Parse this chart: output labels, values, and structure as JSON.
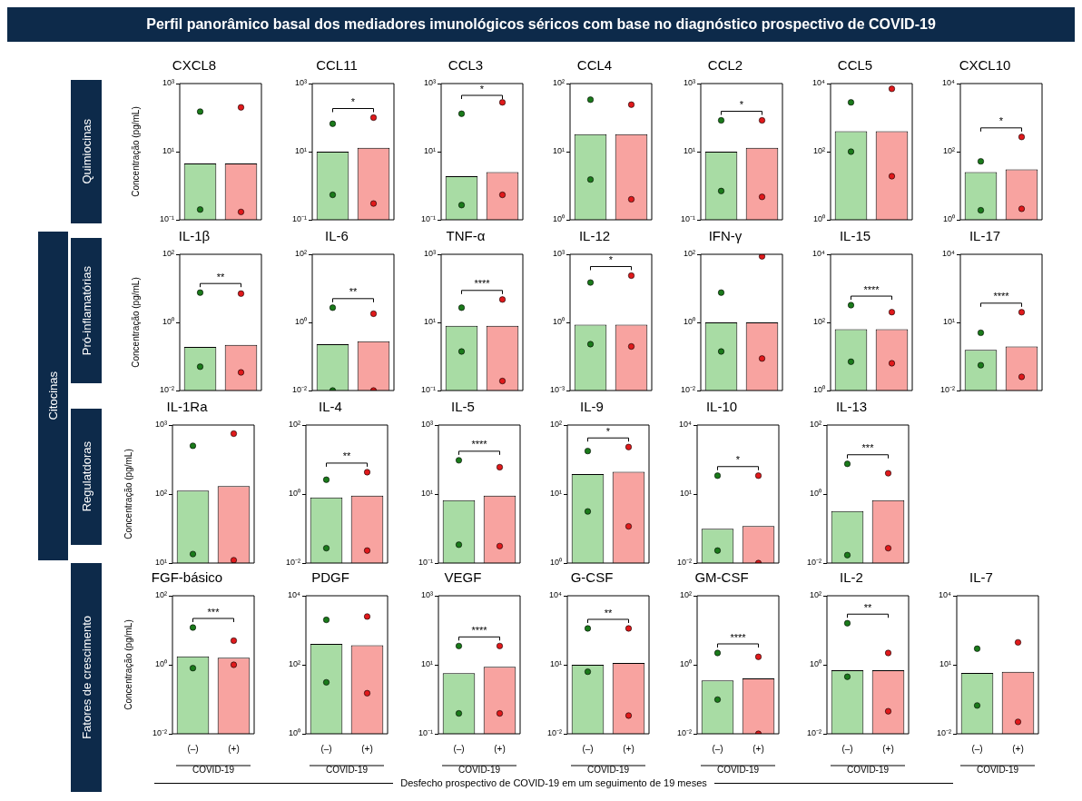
{
  "chart_data": [
    {
      "type": "other",
      "title": "Perfil panorâmico basal dos mediadores imunológicos séricos com base no diagnóstico prospectivo de COVID-19",
      "annotations": [
        "Citocinas",
        "Quimiocinas",
        "Pró-inflamatórias",
        "Regulatdoras",
        "Fatores de crescimento",
        "Desfecho prospectivo de COVID-19 em um seguimento de 19 meses"
      ]
    },
    {
      "type": "bar",
      "title": "CXCL8",
      "ylabel": "Concentração (pg/mL)",
      "categories": [
        "(–)",
        "(+)"
      ],
      "log": true,
      "ylim": [
        0.1,
        1000
      ],
      "yticks": [
        {
          "value": 0.1,
          "label": "10⁻¹"
        },
        {
          "value": 10,
          "label": "10¹"
        },
        {
          "value": 1000,
          "label": "10³"
        }
      ],
      "tick_labels": "y",
      "marker": "circle",
      "series": [
        {
          "colors": [
            "#a8dca4",
            "#f8a3a0"
          ],
          "values": [
            4.5,
            4.5
          ]
        },
        {
          "type": "scatter",
          "color": "#1a7a1a",
          "x": [
            "(–)",
            "(–)"
          ],
          "values": [
            150,
            0.2
          ]
        },
        {
          "type": "scatter",
          "color": "#e0191b",
          "x": [
            "(+)",
            "(+)"
          ],
          "values": [
            200,
            0.17
          ]
        }
      ]
    },
    {
      "type": "bar",
      "title": "CCL11",
      "categories": [
        "(–)",
        "(+)"
      ],
      "log": true,
      "ylim": [
        0.1,
        1000
      ],
      "yticks": [
        {
          "value": 0.1,
          "label": "10⁻¹"
        },
        {
          "value": 10,
          "label": "10¹"
        },
        {
          "value": 1000,
          "label": "10³"
        }
      ],
      "tick_labels": "y",
      "marker": "circle",
      "annotations": [
        "*"
      ],
      "series": [
        {
          "colors": [
            "#a8dca4",
            "#f8a3a0"
          ],
          "values": [
            10,
            13
          ]
        },
        {
          "type": "scatter",
          "color": "#1a7a1a",
          "x": [
            "(–)",
            "(–)"
          ],
          "values": [
            66,
            0.54
          ]
        },
        {
          "type": "scatter",
          "color": "#e0191b",
          "x": [
            "(+)",
            "(+)"
          ],
          "values": [
            100,
            0.3
          ]
        }
      ]
    },
    {
      "type": "bar",
      "title": "CCL3",
      "categories": [
        "(–)",
        "(+)"
      ],
      "log": true,
      "ylim": [
        0.1,
        1000
      ],
      "yticks": [
        {
          "value": 0.1,
          "label": "10⁻¹"
        },
        {
          "value": 10,
          "label": "10¹"
        },
        {
          "value": 1000,
          "label": "10³"
        }
      ],
      "tick_labels": "y",
      "marker": "circle",
      "annotations": [
        "*"
      ],
      "series": [
        {
          "colors": [
            "#a8dca4",
            "#f8a3a0"
          ],
          "values": [
            1.9,
            2.5
          ]
        },
        {
          "type": "scatter",
          "color": "#1a7a1a",
          "x": [
            "(–)",
            "(–)"
          ],
          "values": [
            130,
            0.27
          ]
        },
        {
          "type": "scatter",
          "color": "#e0191b",
          "x": [
            "(+)",
            "(+)"
          ],
          "values": [
            280,
            0.54
          ]
        }
      ]
    },
    {
      "type": "bar",
      "title": "CCL4",
      "categories": [
        "(–)",
        "(+)"
      ],
      "log": true,
      "ylim": [
        1,
        100
      ],
      "yticks": [
        {
          "value": 1,
          "label": "10⁰"
        },
        {
          "value": 10,
          "label": "10¹"
        },
        {
          "value": 100,
          "label": "10²"
        }
      ],
      "tick_labels": "y",
      "marker": "circle",
      "series": [
        {
          "colors": [
            "#a8dca4",
            "#f8a3a0"
          ],
          "values": [
            18,
            18
          ]
        },
        {
          "type": "scatter",
          "color": "#1a7a1a",
          "x": [
            "(–)",
            "(–)"
          ],
          "values": [
            58,
            3.9
          ]
        },
        {
          "type": "scatter",
          "color": "#e0191b",
          "x": [
            "(+)",
            "(+)"
          ],
          "values": [
            49,
            2
          ]
        }
      ]
    },
    {
      "type": "bar",
      "title": "CCL2",
      "categories": [
        "(–)",
        "(+)"
      ],
      "log": true,
      "ylim": [
        0.1,
        1000
      ],
      "yticks": [
        {
          "value": 0.1,
          "label": "10⁻¹"
        },
        {
          "value": 10,
          "label": "10¹"
        },
        {
          "value": 1000,
          "label": "10³"
        }
      ],
      "tick_labels": "y",
      "marker": "circle",
      "annotations": [
        "*"
      ],
      "series": [
        {
          "colors": [
            "#a8dca4",
            "#f8a3a0"
          ],
          "values": [
            10,
            13
          ]
        },
        {
          "type": "scatter",
          "color": "#1a7a1a",
          "x": [
            "(–)",
            "(–)"
          ],
          "values": [
            83,
            0.7
          ]
        },
        {
          "type": "scatter",
          "color": "#e0191b",
          "x": [
            "(+)",
            "(+)"
          ],
          "values": [
            83,
            0.47
          ]
        }
      ]
    },
    {
      "type": "bar",
      "title": "CCL5",
      "categories": [
        "(–)",
        "(+)"
      ],
      "log": true,
      "ylim": [
        1,
        10000
      ],
      "yticks": [
        {
          "value": 1,
          "label": "10⁰"
        },
        {
          "value": 100,
          "label": "10²"
        },
        {
          "value": 10000,
          "label": "10⁴"
        }
      ],
      "tick_labels": "y",
      "marker": "circle",
      "series": [
        {
          "colors": [
            "#a8dca4",
            "#f8a3a0"
          ],
          "values": [
            400,
            400
          ]
        },
        {
          "type": "scatter",
          "color": "#1a7a1a",
          "x": [
            "(–)",
            "(–)"
          ],
          "values": [
            2800,
            100
          ]
        },
        {
          "type": "scatter",
          "color": "#e0191b",
          "x": [
            "(+)",
            "(+)"
          ],
          "values": [
            7000,
            19
          ]
        }
      ]
    },
    {
      "type": "bar",
      "title": "CXCL10",
      "categories": [
        "(–)",
        "(+)"
      ],
      "log": true,
      "ylim": [
        1,
        10000
      ],
      "yticks": [
        {
          "value": 1,
          "label": "10⁰"
        },
        {
          "value": 100,
          "label": "10²"
        },
        {
          "value": 10000,
          "label": "10⁴"
        }
      ],
      "tick_labels": "y",
      "marker": "circle",
      "annotations": [
        "*"
      ],
      "series": [
        {
          "colors": [
            "#a8dca4",
            "#f8a3a0"
          ],
          "values": [
            25,
            30
          ]
        },
        {
          "type": "scatter",
          "color": "#1a7a1a",
          "x": [
            "(–)",
            "(–)"
          ],
          "values": [
            52,
            1.9
          ]
        },
        {
          "type": "scatter",
          "color": "#e0191b",
          "x": [
            "(+)",
            "(+)"
          ],
          "values": [
            270,
            2.1
          ]
        }
      ]
    },
    {
      "type": "bar",
      "title": "IL-1β",
      "ylabel": "Concentração (pg/mL)",
      "categories": [
        "(–)",
        "(+)"
      ],
      "log": true,
      "ylim": [
        0.01,
        100
      ],
      "yticks": [
        {
          "value": 0.01,
          "label": "10⁻²"
        },
        {
          "value": 1,
          "label": "10⁰"
        },
        {
          "value": 100,
          "label": "10²"
        }
      ],
      "tick_labels": "y",
      "marker": "circle",
      "annotations": [
        "**"
      ],
      "series": [
        {
          "colors": [
            "#a8dca4",
            "#f8a3a0"
          ],
          "values": [
            0.19,
            0.22
          ]
        },
        {
          "type": "scatter",
          "color": "#1a7a1a",
          "x": [
            "(–)",
            "(–)"
          ],
          "values": [
            7.5,
            0.05
          ]
        },
        {
          "type": "scatter",
          "color": "#e0191b",
          "x": [
            "(+)",
            "(+)"
          ],
          "values": [
            7,
            0.034
          ]
        }
      ]
    },
    {
      "type": "bar",
      "title": "IL-6",
      "categories": [
        "(–)",
        "(+)"
      ],
      "log": true,
      "ylim": [
        0.01,
        100
      ],
      "yticks": [
        {
          "value": 0.01,
          "label": "10⁻²"
        },
        {
          "value": 1,
          "label": "10⁰"
        },
        {
          "value": 100,
          "label": "10²"
        }
      ],
      "tick_labels": "y",
      "marker": "circle",
      "annotations": [
        "**"
      ],
      "series": [
        {
          "colors": [
            "#a8dca4",
            "#f8a3a0"
          ],
          "values": [
            0.23,
            0.28
          ]
        },
        {
          "type": "scatter",
          "color": "#1a7a1a",
          "x": [
            "(–)",
            "(–)"
          ],
          "values": [
            2.7,
            0.01
          ]
        },
        {
          "type": "scatter",
          "color": "#e0191b",
          "x": [
            "(+)",
            "(+)"
          ],
          "values": [
            1.8,
            0.01
          ]
        }
      ]
    },
    {
      "type": "bar",
      "title": "TNF-α",
      "categories": [
        "(–)",
        "(+)"
      ],
      "log": true,
      "ylim": [
        0.1,
        1000
      ],
      "yticks": [
        {
          "value": 0.1,
          "label": "10⁻¹"
        },
        {
          "value": 10,
          "label": "10¹"
        },
        {
          "value": 1000,
          "label": "10³"
        }
      ],
      "tick_labels": "y",
      "marker": "circle",
      "annotations": [
        "****"
      ],
      "series": [
        {
          "colors": [
            "#a8dca4",
            "#f8a3a0"
          ],
          "values": [
            7.9,
            7.9
          ]
        },
        {
          "type": "scatter",
          "color": "#1a7a1a",
          "x": [
            "(–)",
            "(–)"
          ],
          "values": [
            27,
            1.4
          ]
        },
        {
          "type": "scatter",
          "color": "#e0191b",
          "x": [
            "(+)",
            "(+)"
          ],
          "values": [
            47,
            0.19
          ]
        }
      ]
    },
    {
      "type": "bar",
      "title": "IL-12",
      "categories": [
        "(–)",
        "(+)"
      ],
      "log": true,
      "ylim": [
        0.001,
        1000
      ],
      "yticks": [
        {
          "value": 0.001,
          "label": "10⁻³"
        },
        {
          "value": 1,
          "label": "10⁰"
        },
        {
          "value": 1000,
          "label": "10³"
        }
      ],
      "tick_labels": "y",
      "marker": "circle",
      "annotations": [
        "*"
      ],
      "series": [
        {
          "colors": [
            "#a8dca4",
            "#f8a3a0"
          ],
          "values": [
            0.8,
            0.8
          ]
        },
        {
          "type": "scatter",
          "color": "#1a7a1a",
          "x": [
            "(–)",
            "(–)"
          ],
          "values": [
            57,
            0.11
          ]
        },
        {
          "type": "scatter",
          "color": "#e0191b",
          "x": [
            "(+)",
            "(+)"
          ],
          "values": [
            115,
            0.087
          ]
        }
      ]
    },
    {
      "type": "bar",
      "title": "IFN-γ",
      "categories": [
        "(–)",
        "(+)"
      ],
      "log": true,
      "ylim": [
        0.01,
        100
      ],
      "yticks": [
        {
          "value": 0.01,
          "label": "10⁻²"
        },
        {
          "value": 1,
          "label": "10⁰"
        },
        {
          "value": 100,
          "label": "10²"
        }
      ],
      "tick_labels": "y",
      "marker": "circle",
      "series": [
        {
          "colors": [
            "#a8dca4",
            "#f8a3a0"
          ],
          "values": [
            1,
            1
          ]
        },
        {
          "type": "scatter",
          "color": "#1a7a1a",
          "x": [
            "(–)",
            "(–)"
          ],
          "values": [
            7.5,
            0.14
          ]
        },
        {
          "type": "scatter",
          "color": "#e0191b",
          "x": [
            "(+)",
            "(+)"
          ],
          "values": [
            87,
            0.087
          ]
        }
      ]
    },
    {
      "type": "bar",
      "title": "IL-15",
      "categories": [
        "(–)",
        "(+)"
      ],
      "log": true,
      "ylim": [
        1,
        10000
      ],
      "yticks": [
        {
          "value": 1,
          "label": "10⁰"
        },
        {
          "value": 100,
          "label": "10²"
        },
        {
          "value": 10000,
          "label": "10⁴"
        }
      ],
      "tick_labels": "y",
      "marker": "circle",
      "annotations": [
        "****"
      ],
      "series": [
        {
          "colors": [
            "#a8dca4",
            "#f8a3a0"
          ],
          "values": [
            63,
            63
          ]
        },
        {
          "type": "scatter",
          "color": "#1a7a1a",
          "x": [
            "(–)",
            "(–)"
          ],
          "values": [
            320,
            7
          ]
        },
        {
          "type": "scatter",
          "color": "#e0191b",
          "x": [
            "(+)",
            "(+)"
          ],
          "values": [
            200,
            6.3
          ]
        }
      ]
    },
    {
      "type": "bar",
      "title": "IL-17",
      "categories": [
        "(–)",
        "(+)"
      ],
      "log": true,
      "ylim": [
        0.01,
        10000
      ],
      "yticks": [
        {
          "value": 0.01,
          "label": "10⁻²"
        },
        {
          "value": 10,
          "label": "10¹"
        },
        {
          "value": 10000,
          "label": "10⁴"
        }
      ],
      "tick_labels": "y",
      "marker": "circle",
      "annotations": [
        "****"
      ],
      "series": [
        {
          "colors": [
            "#a8dca4",
            "#f8a3a0"
          ],
          "values": [
            0.62,
            0.87
          ]
        },
        {
          "type": "scatter",
          "color": "#1a7a1a",
          "x": [
            "(–)",
            "(–)"
          ],
          "values": [
            3.5,
            0.13
          ]
        },
        {
          "type": "scatter",
          "color": "#e0191b",
          "x": [
            "(+)",
            "(+)"
          ],
          "values": [
            28,
            0.04
          ]
        }
      ]
    },
    {
      "type": "bar",
      "title": "IL-1Ra",
      "ylabel": "Concentração (pg/mL)",
      "categories": [
        "(–)",
        "(+)"
      ],
      "log": true,
      "ylim": [
        10,
        1000
      ],
      "yticks": [
        {
          "value": 10,
          "label": "10¹"
        },
        {
          "value": 100,
          "label": "10²"
        },
        {
          "value": 1000,
          "label": "10³"
        }
      ],
      "tick_labels": "y",
      "marker": "circle",
      "series": [
        {
          "colors": [
            "#a8dca4",
            "#f8a3a0"
          ],
          "values": [
            112,
            130
          ]
        },
        {
          "type": "scatter",
          "color": "#1a7a1a",
          "x": [
            "(–)",
            "(–)"
          ],
          "values": [
            500,
            13.5
          ]
        },
        {
          "type": "scatter",
          "color": "#e0191b",
          "x": [
            "(+)",
            "(+)"
          ],
          "values": [
            750,
            11
          ]
        }
      ]
    },
    {
      "type": "bar",
      "title": "IL-4",
      "categories": [
        "(–)",
        "(+)"
      ],
      "log": true,
      "ylim": [
        0.01,
        100
      ],
      "yticks": [
        {
          "value": 0.01,
          "label": "10⁻²"
        },
        {
          "value": 1,
          "label": "10⁰"
        },
        {
          "value": 100,
          "label": "10²"
        }
      ],
      "tick_labels": "y",
      "marker": "circle",
      "annotations": [
        "**"
      ],
      "series": [
        {
          "colors": [
            "#a8dca4",
            "#f8a3a0"
          ],
          "values": [
            0.8,
            0.9
          ]
        },
        {
          "type": "scatter",
          "color": "#1a7a1a",
          "x": [
            "(–)",
            "(–)"
          ],
          "values": [
            2.6,
            0.027
          ]
        },
        {
          "type": "scatter",
          "color": "#e0191b",
          "x": [
            "(+)",
            "(+)"
          ],
          "values": [
            4.3,
            0.023
          ]
        }
      ]
    },
    {
      "type": "bar",
      "title": "IL-5",
      "categories": [
        "(–)",
        "(+)"
      ],
      "log": true,
      "ylim": [
        0.1,
        1000
      ],
      "yticks": [
        {
          "value": 0.1,
          "label": "10⁻¹"
        },
        {
          "value": 10,
          "label": "10¹"
        },
        {
          "value": 1000,
          "label": "10³"
        }
      ],
      "tick_labels": "y",
      "marker": "circle",
      "annotations": [
        "****"
      ],
      "series": [
        {
          "colors": [
            "#a8dca4",
            "#f8a3a0"
          ],
          "values": [
            6.6,
            9
          ]
        },
        {
          "type": "scatter",
          "color": "#1a7a1a",
          "x": [
            "(–)",
            "(–)"
          ],
          "values": [
            95,
            0.34
          ]
        },
        {
          "type": "scatter",
          "color": "#e0191b",
          "x": [
            "(+)",
            "(+)"
          ],
          "values": [
            60,
            0.31
          ]
        }
      ]
    },
    {
      "type": "bar",
      "title": "IL-9",
      "categories": [
        "(–)",
        "(+)"
      ],
      "log": true,
      "ylim": [
        1,
        100
      ],
      "yticks": [
        {
          "value": 1,
          "label": "10⁰"
        },
        {
          "value": 10,
          "label": "10¹"
        },
        {
          "value": 100,
          "label": "10²"
        }
      ],
      "tick_labels": "y",
      "marker": "circle",
      "annotations": [
        "*"
      ],
      "series": [
        {
          "colors": [
            "#a8dca4",
            "#f8a3a0"
          ],
          "values": [
            19.5,
            21
          ]
        },
        {
          "type": "scatter",
          "color": "#1a7a1a",
          "x": [
            "(–)",
            "(–)"
          ],
          "values": [
            42,
            5.6
          ]
        },
        {
          "type": "scatter",
          "color": "#e0191b",
          "x": [
            "(+)",
            "(+)"
          ],
          "values": [
            48,
            3.4
          ]
        }
      ]
    },
    {
      "type": "bar",
      "title": "IL-10",
      "categories": [
        "(–)",
        "(+)"
      ],
      "log": true,
      "ylim": [
        0.01,
        10000
      ],
      "yticks": [
        {
          "value": 0.01,
          "label": "10⁻²"
        },
        {
          "value": 10,
          "label": "10¹"
        },
        {
          "value": 10000,
          "label": "10⁴"
        }
      ],
      "tick_labels": "y",
      "marker": "circle",
      "annotations": [
        "*"
      ],
      "series": [
        {
          "colors": [
            "#a8dca4",
            "#f8a3a0"
          ],
          "values": [
            0.31,
            0.41
          ]
        },
        {
          "type": "scatter",
          "color": "#1a7a1a",
          "x": [
            "(–)",
            "(–)"
          ],
          "values": [
            63,
            0.035
          ]
        },
        {
          "type": "scatter",
          "color": "#e0191b",
          "x": [
            "(+)",
            "(+)"
          ],
          "values": [
            63,
            0.01
          ]
        }
      ]
    },
    {
      "type": "bar",
      "title": "IL-13",
      "categories": [
        "(–)",
        "(+)"
      ],
      "log": true,
      "ylim": [
        0.01,
        100
      ],
      "yticks": [
        {
          "value": 0.01,
          "label": "10⁻²"
        },
        {
          "value": 1,
          "label": "10⁰"
        },
        {
          "value": 100,
          "label": "10²"
        }
      ],
      "tick_labels": "y",
      "marker": "circle",
      "annotations": [
        "***"
      ],
      "series": [
        {
          "colors": [
            "#a8dca4",
            "#f8a3a0"
          ],
          "values": [
            0.32,
            0.66
          ]
        },
        {
          "type": "scatter",
          "color": "#1a7a1a",
          "x": [
            "(–)",
            "(–)"
          ],
          "values": [
            7.5,
            0.017
          ]
        },
        {
          "type": "scatter",
          "color": "#e0191b",
          "x": [
            "(+)",
            "(+)"
          ],
          "values": [
            4,
            0.027
          ]
        }
      ]
    },
    {
      "type": "bar",
      "title": "FGF-básico",
      "ylabel": "Concentração (pg/mL)",
      "xlabel": "COVID-19",
      "categories": [
        "(–)",
        "(+)"
      ],
      "log": true,
      "ylim": [
        0.01,
        100
      ],
      "yticks": [
        {
          "value": 0.01,
          "label": "10⁻²"
        },
        {
          "value": 1,
          "label": "10⁰"
        },
        {
          "value": 100,
          "label": "10²"
        }
      ],
      "marker": "circle",
      "annotations": [
        "***"
      ],
      "series": [
        {
          "colors": [
            "#a8dca4",
            "#f8a3a0"
          ],
          "values": [
            1.75,
            1.6
          ]
        },
        {
          "type": "scatter",
          "color": "#1a7a1a",
          "x": [
            "(–)",
            "(–)"
          ],
          "values": [
            12,
            0.8
          ]
        },
        {
          "type": "scatter",
          "color": "#e0191b",
          "x": [
            "(+)",
            "(+)"
          ],
          "values": [
            5,
            1.0
          ]
        }
      ]
    },
    {
      "type": "bar",
      "title": "PDGF",
      "xlabel": "COVID-19",
      "categories": [
        "(–)",
        "(+)"
      ],
      "log": true,
      "ylim": [
        1,
        10000
      ],
      "yticks": [
        {
          "value": 1,
          "label": "10⁰"
        },
        {
          "value": 100,
          "label": "10²"
        },
        {
          "value": 10000,
          "label": "10⁴"
        }
      ],
      "marker": "circle",
      "series": [
        {
          "colors": [
            "#a8dca4",
            "#f8a3a0"
          ],
          "values": [
            400,
            370
          ]
        },
        {
          "type": "scatter",
          "color": "#1a7a1a",
          "x": [
            "(–)",
            "(–)"
          ],
          "values": [
            2000,
            31
          ]
        },
        {
          "type": "scatter",
          "color": "#e0191b",
          "x": [
            "(+)",
            "(+)"
          ],
          "values": [
            2500,
            15
          ]
        }
      ]
    },
    {
      "type": "bar",
      "title": "VEGF",
      "xlabel": "COVID-19",
      "categories": [
        "(–)",
        "(+)"
      ],
      "log": true,
      "ylim": [
        0.1,
        1000
      ],
      "yticks": [
        {
          "value": 0.1,
          "label": "10⁻¹"
        },
        {
          "value": 10,
          "label": "10¹"
        },
        {
          "value": 1000,
          "label": "10³"
        }
      ],
      "marker": "circle",
      "annotations": [
        "****"
      ],
      "series": [
        {
          "colors": [
            "#a8dca4",
            "#f8a3a0"
          ],
          "values": [
            5.7,
            8.7
          ]
        },
        {
          "type": "scatter",
          "color": "#1a7a1a",
          "x": [
            "(–)",
            "(–)"
          ],
          "values": [
            35,
            0.39
          ]
        },
        {
          "type": "scatter",
          "color": "#e0191b",
          "x": [
            "(+)",
            "(+)"
          ],
          "values": [
            35,
            0.39
          ]
        }
      ]
    },
    {
      "type": "bar",
      "title": "G-CSF",
      "xlabel": "COVID-19",
      "categories": [
        "(–)",
        "(+)"
      ],
      "log": true,
      "ylim": [
        0.01,
        10000
      ],
      "yticks": [
        {
          "value": 0.01,
          "label": "10⁻²"
        },
        {
          "value": 10,
          "label": "10¹"
        },
        {
          "value": 10000,
          "label": "10⁴"
        }
      ],
      "marker": "circle",
      "annotations": [
        "**"
      ],
      "series": [
        {
          "colors": [
            "#a8dca4",
            "#f8a3a0"
          ],
          "values": [
            10,
            12
          ]
        },
        {
          "type": "scatter",
          "color": "#1a7a1a",
          "x": [
            "(–)",
            "(–)"
          ],
          "values": [
            380,
            5
          ]
        },
        {
          "type": "scatter",
          "color": "#e0191b",
          "x": [
            "(+)",
            "(+)"
          ],
          "values": [
            380,
            0.062
          ]
        }
      ]
    },
    {
      "type": "bar",
      "title": "GM-CSF",
      "xlabel": "COVID-19",
      "categories": [
        "(–)",
        "(+)"
      ],
      "log": true,
      "ylim": [
        0.01,
        100
      ],
      "yticks": [
        {
          "value": 0.01,
          "label": "10⁻²"
        },
        {
          "value": 1,
          "label": "10⁰"
        },
        {
          "value": 100,
          "label": "10²"
        }
      ],
      "marker": "circle",
      "annotations": [
        "****"
      ],
      "series": [
        {
          "colors": [
            "#a8dca4",
            "#f8a3a0"
          ],
          "values": [
            0.35,
            0.4
          ]
        },
        {
          "type": "scatter",
          "color": "#1a7a1a",
          "x": [
            "(–)",
            "(–)"
          ],
          "values": [
            2.2,
            0.098
          ]
        },
        {
          "type": "scatter",
          "color": "#e0191b",
          "x": [
            "(+)",
            "(+)"
          ],
          "values": [
            1.7,
            0.01
          ]
        }
      ]
    },
    {
      "type": "bar",
      "title": "IL-2",
      "xlabel": "COVID-19",
      "categories": [
        "(–)",
        "(+)"
      ],
      "log": true,
      "ylim": [
        0.01,
        100
      ],
      "yticks": [
        {
          "value": 0.01,
          "label": "10⁻²"
        },
        {
          "value": 1,
          "label": "10⁰"
        },
        {
          "value": 100,
          "label": "10²"
        }
      ],
      "marker": "circle",
      "annotations": [
        "**"
      ],
      "series": [
        {
          "colors": [
            "#a8dca4",
            "#f8a3a0"
          ],
          "values": [
            0.69,
            0.69
          ]
        },
        {
          "type": "scatter",
          "color": "#1a7a1a",
          "x": [
            "(–)",
            "(–)"
          ],
          "values": [
            16,
            0.45
          ]
        },
        {
          "type": "scatter",
          "color": "#e0191b",
          "x": [
            "(+)",
            "(+)"
          ],
          "values": [
            2.2,
            0.045
          ]
        }
      ]
    },
    {
      "type": "bar",
      "title": "IL-7",
      "xlabel": "COVID-19",
      "categories": [
        "(–)",
        "(+)"
      ],
      "log": true,
      "ylim": [
        0.01,
        10000
      ],
      "yticks": [
        {
          "value": 0.01,
          "label": "10⁻²"
        },
        {
          "value": 10,
          "label": "10¹"
        },
        {
          "value": 10000,
          "label": "10⁴"
        }
      ],
      "marker": "circle",
      "series": [
        {
          "colors": [
            "#a8dca4",
            "#f8a3a0"
          ],
          "values": [
            4.4,
            5
          ]
        },
        {
          "type": "scatter",
          "color": "#1a7a1a",
          "x": [
            "(–)",
            "(–)"
          ],
          "values": [
            50,
            0.17
          ]
        },
        {
          "type": "scatter",
          "color": "#e0191b",
          "x": [
            "(+)",
            "(+)"
          ],
          "values": [
            94,
            0.033
          ]
        }
      ]
    }
  ]
}
